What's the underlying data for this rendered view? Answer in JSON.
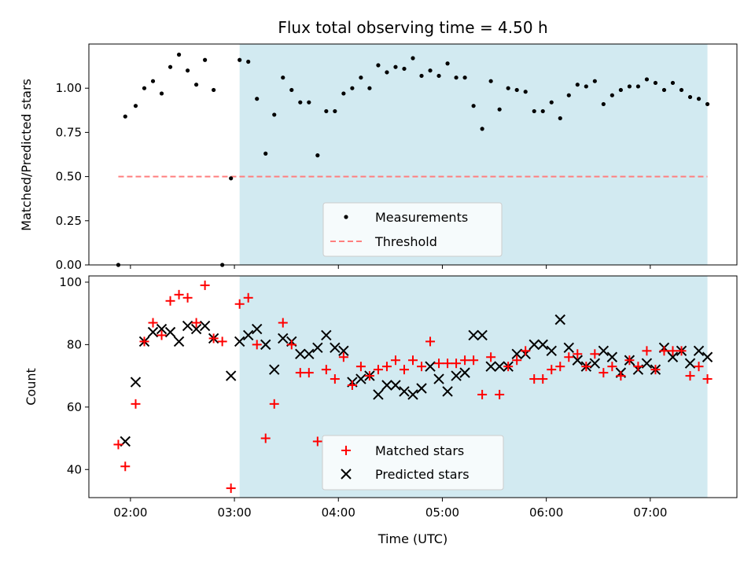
{
  "chart_data": [
    {
      "type": "scatter",
      "title": "Flux total observing time = 4.50 h",
      "xlabel": "",
      "ylabel": "Matched/Predicted stars",
      "xlim": [
        "01:36",
        "07:50"
      ],
      "ylim": [
        0,
        1.25
      ],
      "yticks": [
        "0.00",
        "0.25",
        "0.50",
        "0.75",
        "1.00"
      ],
      "grid": false,
      "legend": "lower-center",
      "shaded_region": {
        "x_start": "03:03",
        "x_end": "07:33",
        "color": "#add8e6"
      },
      "series": [
        {
          "name": "Measurements",
          "marker": "dot",
          "color": "#000000",
          "x": [
            "01:53",
            "01:57",
            "02:03",
            "02:08",
            "02:13",
            "02:18",
            "02:23",
            "02:28",
            "02:33",
            "02:38",
            "02:43",
            "02:48",
            "02:53",
            "02:58",
            "03:03",
            "03:08",
            "03:13",
            "03:18",
            "03:23",
            "03:28",
            "03:33",
            "03:38",
            "03:43",
            "03:48",
            "03:53",
            "03:58",
            "04:03",
            "04:08",
            "04:13",
            "04:18",
            "04:23",
            "04:28",
            "04:33",
            "04:38",
            "04:43",
            "04:48",
            "04:53",
            "04:58",
            "05:03",
            "05:08",
            "05:13",
            "05:18",
            "05:23",
            "05:28",
            "05:33",
            "05:38",
            "05:43",
            "05:48",
            "05:53",
            "05:58",
            "06:03",
            "06:08",
            "06:13",
            "06:18",
            "06:23",
            "06:28",
            "06:33",
            "06:38",
            "06:43",
            "06:48",
            "06:53",
            "06:58",
            "07:03",
            "07:08",
            "07:13",
            "07:18",
            "07:23",
            "07:28",
            "07:33"
          ],
          "y": [
            0.0,
            0.84,
            0.9,
            1.0,
            1.04,
            0.97,
            1.12,
            1.19,
            1.1,
            1.02,
            1.16,
            0.99,
            0.0,
            0.49,
            1.16,
            1.15,
            0.94,
            0.63,
            0.85,
            1.06,
            0.99,
            0.92,
            0.92,
            0.62,
            0.87,
            0.87,
            0.97,
            1.0,
            1.06,
            1.0,
            1.13,
            1.09,
            1.12,
            1.11,
            1.17,
            1.07,
            1.1,
            1.07,
            1.14,
            1.06,
            1.06,
            0.9,
            0.77,
            1.04,
            0.88,
            1.0,
            0.99,
            0.98,
            0.87,
            0.87,
            0.92,
            0.83,
            0.96,
            1.02,
            1.01,
            1.04,
            0.91,
            0.96,
            0.99,
            1.01,
            1.01,
            1.05,
            1.03,
            0.99,
            1.03,
            0.99,
            0.95,
            0.94,
            0.91
          ]
        },
        {
          "name": "Threshold",
          "marker": "dashed-line",
          "color": "#ff7f7f",
          "x": [
            "01:53",
            "07:33"
          ],
          "y": [
            0.5,
            0.5
          ]
        }
      ]
    },
    {
      "type": "scatter",
      "title": "",
      "xlabel": "Time (UTC)",
      "ylabel": "Count",
      "xlim": [
        "01:36",
        "07:50"
      ],
      "ylim": [
        31,
        102
      ],
      "yticks": [
        "40",
        "60",
        "80",
        "100"
      ],
      "xticks": [
        "02:00",
        "03:00",
        "04:00",
        "05:00",
        "06:00",
        "07:00"
      ],
      "grid": false,
      "legend": "lower-center",
      "shaded_region": {
        "x_start": "03:03",
        "x_end": "07:33",
        "color": "#add8e6"
      },
      "series": [
        {
          "name": "Matched stars",
          "marker": "plus",
          "color": "#ff0000",
          "x": [
            "01:53",
            "01:57",
            "02:03",
            "02:08",
            "02:13",
            "02:18",
            "02:23",
            "02:28",
            "02:33",
            "02:38",
            "02:43",
            "02:48",
            "02:53",
            "02:58",
            "03:03",
            "03:08",
            "03:13",
            "03:18",
            "03:23",
            "03:28",
            "03:33",
            "03:38",
            "03:43",
            "03:48",
            "03:53",
            "03:58",
            "04:03",
            "04:08",
            "04:13",
            "04:18",
            "04:23",
            "04:28",
            "04:33",
            "04:38",
            "04:43",
            "04:48",
            "04:53",
            "04:58",
            "05:03",
            "05:08",
            "05:13",
            "05:18",
            "05:23",
            "05:28",
            "05:33",
            "05:38",
            "05:43",
            "05:48",
            "05:53",
            "05:58",
            "06:03",
            "06:08",
            "06:13",
            "06:18",
            "06:23",
            "06:28",
            "06:33",
            "06:38",
            "06:43",
            "06:48",
            "06:53",
            "06:58",
            "07:03",
            "07:08",
            "07:13",
            "07:18",
            "07:23",
            "07:28",
            "07:33"
          ],
          "y": [
            48,
            41,
            61,
            81,
            87,
            83,
            94,
            96,
            95,
            87,
            99,
            82,
            81,
            34,
            93,
            95,
            80,
            50,
            61,
            87,
            80,
            71,
            71,
            49,
            72,
            69,
            76,
            67,
            73,
            70,
            72,
            73,
            75,
            72,
            75,
            73,
            81,
            74,
            74,
            74,
            75,
            75,
            64,
            76,
            64,
            73,
            75,
            78,
            69,
            69,
            72,
            73,
            76,
            77,
            73,
            77,
            71,
            73,
            70,
            75,
            73,
            78,
            72,
            78,
            78,
            78,
            70,
            73,
            69
          ]
        },
        {
          "name": "Predicted stars",
          "marker": "x",
          "color": "#000000",
          "x": [
            "01:57",
            "02:03",
            "02:08",
            "02:13",
            "02:18",
            "02:23",
            "02:28",
            "02:33",
            "02:38",
            "02:43",
            "02:48",
            "02:58",
            "03:03",
            "03:08",
            "03:13",
            "03:18",
            "03:23",
            "03:28",
            "03:33",
            "03:38",
            "03:43",
            "03:48",
            "03:53",
            "03:58",
            "04:03",
            "04:08",
            "04:13",
            "04:18",
            "04:23",
            "04:28",
            "04:33",
            "04:38",
            "04:43",
            "04:48",
            "04:53",
            "04:58",
            "05:03",
            "05:08",
            "05:13",
            "05:18",
            "05:23",
            "05:28",
            "05:33",
            "05:38",
            "05:43",
            "05:48",
            "05:53",
            "05:58",
            "06:03",
            "06:08",
            "06:13",
            "06:18",
            "06:23",
            "06:28",
            "06:33",
            "06:38",
            "06:43",
            "06:48",
            "06:53",
            "06:58",
            "07:03",
            "07:08",
            "07:13",
            "07:18",
            "07:23",
            "07:28",
            "07:33"
          ],
          "y": [
            49,
            68,
            81,
            84,
            85,
            84,
            81,
            86,
            85,
            86,
            82,
            70,
            81,
            83,
            85,
            80,
            72,
            82,
            81,
            77,
            77,
            79,
            83,
            79,
            78,
            68,
            69,
            70,
            64,
            67,
            67,
            65,
            64,
            66,
            73,
            69,
            65,
            70,
            71,
            83,
            83,
            73,
            73,
            73,
            77,
            77,
            80,
            80,
            78,
            88,
            79,
            75,
            73,
            74,
            78,
            76,
            71,
            75,
            72,
            74,
            72,
            79,
            76,
            78,
            74,
            78,
            76
          ]
        }
      ]
    }
  ]
}
